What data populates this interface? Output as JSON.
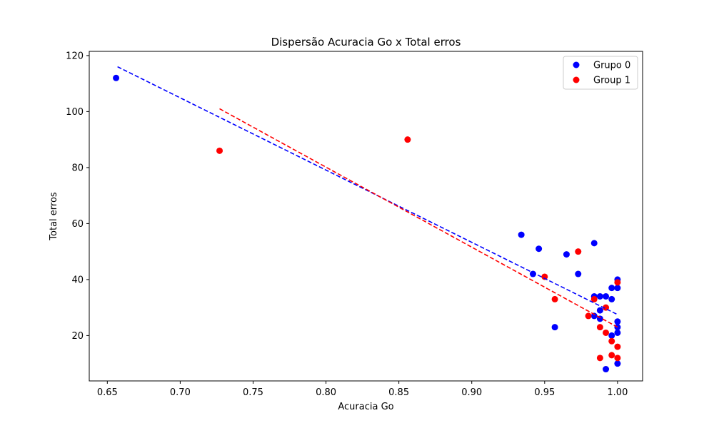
{
  "chart_data": {
    "type": "scatter",
    "title": "Dispersão Acuracia Go x Total erros",
    "xlabel": "Acuracia Go",
    "ylabel": "Total erros",
    "xlim": [
      0.6376,
      1.0172
    ],
    "ylim": [
      3.8,
      121.5
    ],
    "xticks": [
      0.65,
      0.7,
      0.75,
      0.8,
      0.85,
      0.9,
      0.95,
      1.0
    ],
    "xtick_labels": [
      "0.65",
      "0.70",
      "0.75",
      "0.80",
      "0.85",
      "0.90",
      "0.95",
      "1.00"
    ],
    "yticks": [
      20,
      40,
      60,
      80,
      100,
      120
    ],
    "ytick_labels": [
      "20",
      "40",
      "60",
      "80",
      "100",
      "120"
    ],
    "grid": false,
    "legend_position": "top-right",
    "series": [
      {
        "name": "Grupo 0",
        "color": "#0000ff",
        "points": [
          [
            0.656,
            112
          ],
          [
            0.934,
            56
          ],
          [
            0.942,
            42
          ],
          [
            0.946,
            51
          ],
          [
            0.957,
            23
          ],
          [
            0.965,
            49
          ],
          [
            0.973,
            42
          ],
          [
            0.984,
            53
          ],
          [
            0.984,
            34
          ],
          [
            0.984,
            27
          ],
          [
            0.988,
            34
          ],
          [
            0.988,
            29
          ],
          [
            0.988,
            26
          ],
          [
            0.992,
            34
          ],
          [
            0.992,
            8
          ],
          [
            0.996,
            37
          ],
          [
            0.996,
            33
          ],
          [
            0.996,
            20
          ],
          [
            1.0,
            40
          ],
          [
            1.0,
            37
          ],
          [
            1.0,
            25
          ],
          [
            1.0,
            23
          ],
          [
            1.0,
            21
          ],
          [
            1.0,
            10
          ]
        ],
        "fit_line": {
          "x": [
            0.657,
            1.0
          ],
          "y": [
            116,
            27.5
          ]
        }
      },
      {
        "name": "Group 1",
        "color": "#ff0000",
        "points": [
          [
            0.727,
            86
          ],
          [
            0.856,
            90
          ],
          [
            0.95,
            41
          ],
          [
            0.957,
            33
          ],
          [
            0.973,
            50
          ],
          [
            0.98,
            27
          ],
          [
            0.984,
            33
          ],
          [
            0.988,
            23
          ],
          [
            0.988,
            12
          ],
          [
            0.992,
            30
          ],
          [
            0.992,
            21
          ],
          [
            0.996,
            18
          ],
          [
            0.996,
            13
          ],
          [
            1.0,
            39
          ],
          [
            1.0,
            16
          ],
          [
            1.0,
            12
          ]
        ],
        "fit_line": {
          "x": [
            0.727,
            1.0
          ],
          "y": [
            101,
            23
          ]
        }
      }
    ]
  }
}
